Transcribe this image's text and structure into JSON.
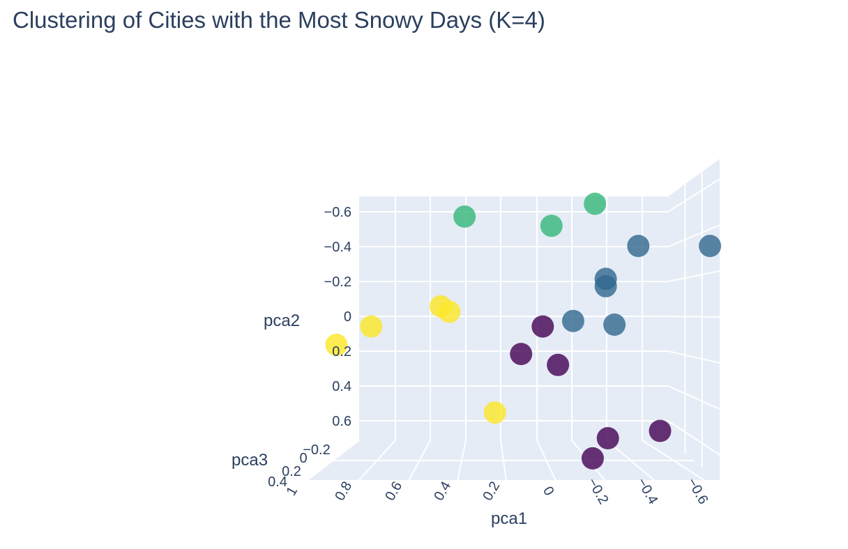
{
  "colors": {
    "pane": "#e5ecf6",
    "grid": "#ffffff",
    "text": "#2a3f5f",
    "cluster_0": "#440154",
    "cluster_1": "#31688e",
    "cluster_2": "#35b779",
    "cluster_3": "#fde725"
  },
  "chart_data": {
    "type": "scatter",
    "title": "Clustering of Cities with the Most Snowy Days (K=4)",
    "xlabel": "pca1",
    "ylabel": "pca2",
    "zlabel": "pca3",
    "x_ticks": [
      "1",
      "0.8",
      "0.6",
      "0.4",
      "0.2",
      "0",
      "−0.2",
      "−0.4",
      "−0.6"
    ],
    "y_ticks": [
      "−0.6",
      "−0.4",
      "−0.2",
      "0",
      "0.2",
      "0.4",
      "0.6"
    ],
    "z_ticks": [
      "−0.2",
      "0",
      "0.2",
      "0.4"
    ],
    "x_range": [
      1.05,
      -0.7
    ],
    "y_range": [
      -0.68,
      0.72
    ],
    "grid": true,
    "colorscale": "viridis",
    "points": [
      {
        "pca1": 0.42,
        "pca2": -0.57,
        "cluster": 2
      },
      {
        "pca1": 0.02,
        "pca2": -0.52,
        "cluster": 2
      },
      {
        "pca1": -0.18,
        "pca2": -0.64,
        "cluster": 2
      },
      {
        "pca1": -0.38,
        "pca2": -0.41,
        "cluster": 1
      },
      {
        "pca1": -0.71,
        "pca2": -0.41,
        "cluster": 1
      },
      {
        "pca1": -0.23,
        "pca2": -0.23,
        "cluster": 1
      },
      {
        "pca1": -0.23,
        "pca2": -0.19,
        "cluster": 1
      },
      {
        "pca1": -0.08,
        "pca2": 0.0,
        "cluster": 1
      },
      {
        "pca1": -0.27,
        "pca2": 0.02,
        "cluster": 1
      },
      {
        "pca1": 0.53,
        "pca2": -0.08,
        "cluster": 3
      },
      {
        "pca1": 0.49,
        "pca2": -0.05,
        "cluster": 3
      },
      {
        "pca1": 0.85,
        "pca2": 0.03,
        "cluster": 3
      },
      {
        "pca1": 1.01,
        "pca2": 0.13,
        "cluster": 3
      },
      {
        "pca1": 0.28,
        "pca2": 0.5,
        "cluster": 3
      },
      {
        "pca1": 0.06,
        "pca2": 0.03,
        "cluster": 0
      },
      {
        "pca1": 0.16,
        "pca2": 0.18,
        "cluster": 0
      },
      {
        "pca1": -0.01,
        "pca2": 0.24,
        "cluster": 0
      },
      {
        "pca1": -0.24,
        "pca2": 0.64,
        "cluster": 0
      },
      {
        "pca1": -0.48,
        "pca2": 0.6,
        "cluster": 0
      },
      {
        "pca1": -0.17,
        "pca2": 0.75,
        "cluster": 0
      }
    ]
  }
}
